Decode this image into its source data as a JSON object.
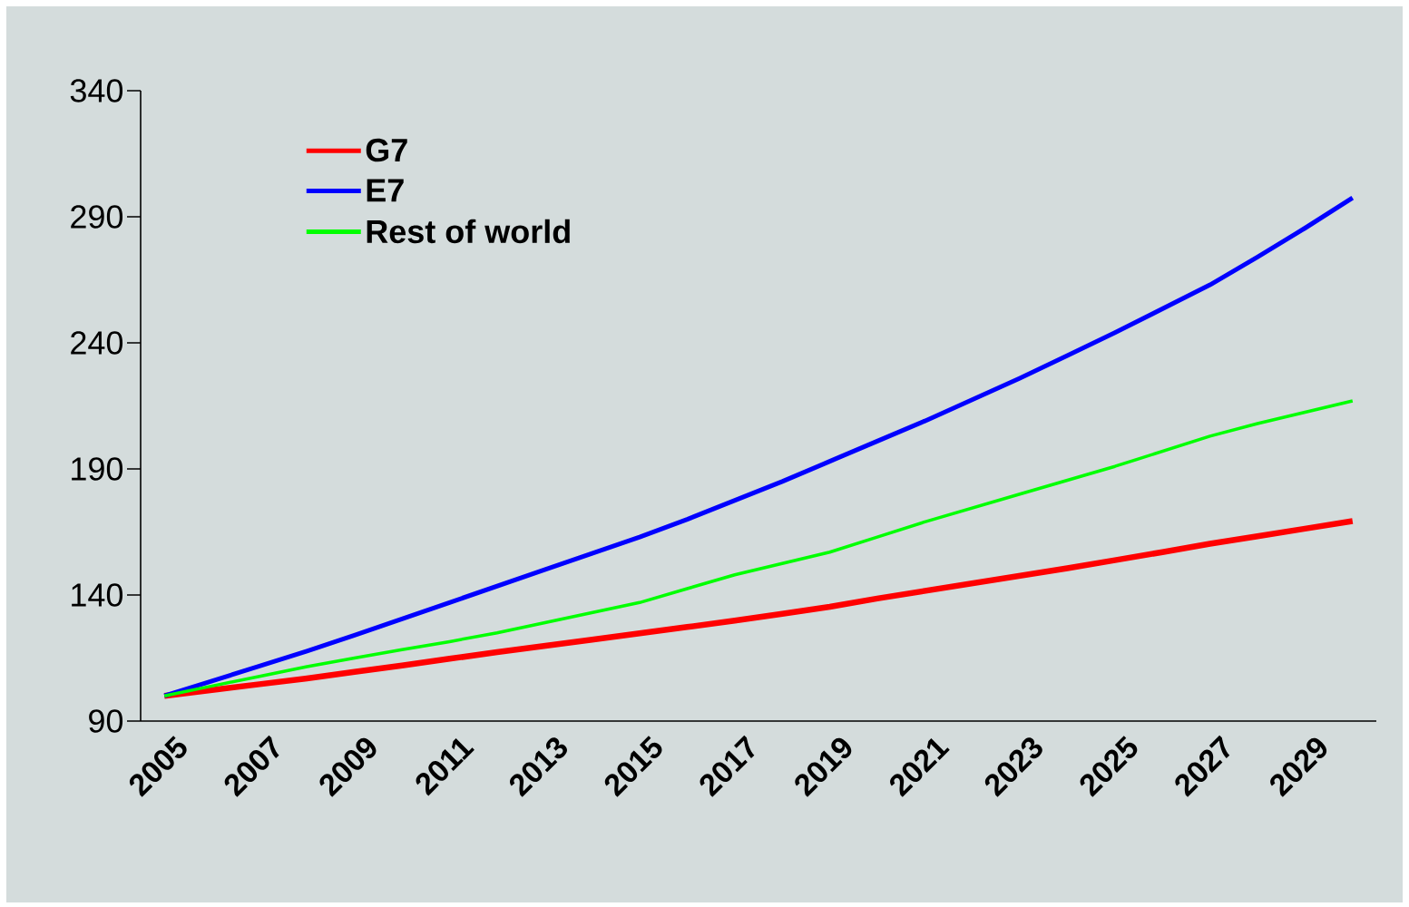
{
  "chart_data": {
    "type": "line",
    "categories": [
      "2005",
      null,
      "2007",
      null,
      "2009",
      null,
      "2011",
      null,
      "2013",
      null,
      "2015",
      null,
      "2017",
      null,
      "2019",
      null,
      "2021",
      null,
      "2023",
      null,
      "2025",
      null,
      "2027",
      null,
      "2029",
      null
    ],
    "series": [
      {
        "name": "G7",
        "color": "#ff0000",
        "values": [
          100,
          102.3,
          104.6,
          106.9,
          109.5,
          112,
          114.7,
          117.3,
          119.8,
          122.3,
          124.8,
          127.3,
          129.8,
          132.5,
          135.3,
          138.6,
          141.6,
          144.6,
          147.6,
          150.6,
          153.8,
          157,
          160.3,
          163.3,
          166.3,
          169.3
        ]
      },
      {
        "name": "E7",
        "color": "#0000ff",
        "values": [
          100,
          105.9,
          111.8,
          117.7,
          124,
          130.5,
          137,
          143.5,
          150,
          156.5,
          163,
          170,
          177.5,
          185,
          193,
          201,
          209,
          217.5,
          226,
          235,
          244,
          253.5,
          263,
          274,
          285.5,
          297.5
        ]
      },
      {
        "name": "Rest of world",
        "color": "#00ff00",
        "values": [
          100,
          103.9,
          107.7,
          111.6,
          115,
          118.3,
          121.5,
          125,
          129,
          133,
          137,
          142.5,
          148,
          152.5,
          157,
          163,
          169,
          174.5,
          180,
          185.5,
          191,
          197,
          203,
          208,
          212.5,
          217
        ]
      }
    ],
    "ylim": [
      90,
      340
    ],
    "yticks": [
      90,
      140,
      190,
      240,
      290,
      340
    ],
    "legend": "top left"
  }
}
